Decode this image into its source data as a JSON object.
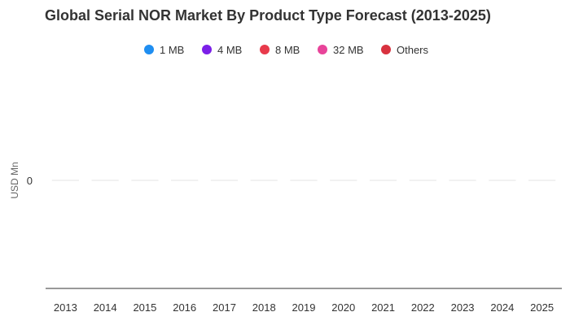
{
  "chart_data": {
    "type": "bar",
    "title": "Global Serial NOR Market By Product Type Forecast (2013-2025)",
    "ylabel": "USD Mn",
    "xlabel": "",
    "categories": [
      "2013",
      "2014",
      "2015",
      "2016",
      "2017",
      "2018",
      "2019",
      "2020",
      "2021",
      "2022",
      "2023",
      "2024",
      "2025"
    ],
    "yticks": [
      "0"
    ],
    "series": [
      {
        "name": "1 MB",
        "color": "#1f8ef1",
        "values": [
          0,
          0,
          0,
          0,
          0,
          0,
          0,
          0,
          0,
          0,
          0,
          0,
          0
        ]
      },
      {
        "name": "4 MB",
        "color": "#7b1fe8",
        "values": [
          0,
          0,
          0,
          0,
          0,
          0,
          0,
          0,
          0,
          0,
          0,
          0,
          0
        ]
      },
      {
        "name": "8 MB",
        "color": "#e83a4b",
        "values": [
          0,
          0,
          0,
          0,
          0,
          0,
          0,
          0,
          0,
          0,
          0,
          0,
          0
        ]
      },
      {
        "name": "32 MB",
        "color": "#e8449a",
        "values": [
          0,
          0,
          0,
          0,
          0,
          0,
          0,
          0,
          0,
          0,
          0,
          0,
          0
        ]
      },
      {
        "name": "Others",
        "color": "#d8323f",
        "values": [
          0,
          0,
          0,
          0,
          0,
          0,
          0,
          0,
          0,
          0,
          0,
          0,
          0
        ]
      }
    ],
    "legend_position": "top-center",
    "grid": false
  }
}
